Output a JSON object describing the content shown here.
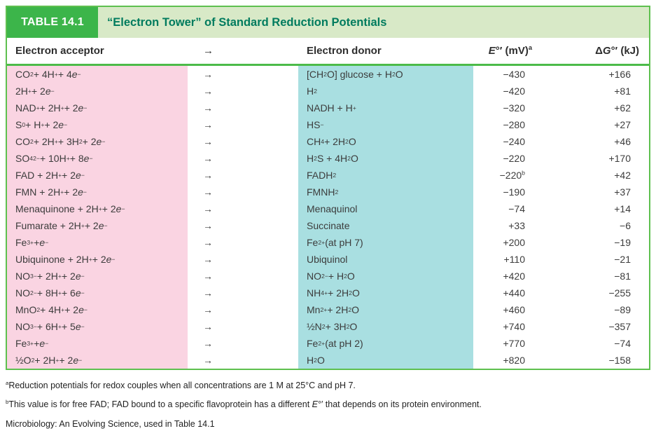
{
  "table": {
    "label": "TABLE 14.1",
    "title": "“Electron Tower” of Standard Reduction Potentials",
    "columns": {
      "acceptor": "Electron acceptor",
      "arrow": "→",
      "donor": "Electron donor",
      "emv_html": "<i>E</i>°′ (mV)<sup>a</sup>",
      "dg_html": "Δ<i>G</i>°′ (kJ)"
    },
    "arrow_glyph": "→",
    "rows": [
      {
        "acceptor_html": "CO<sub>2</sub> + 4H<sup>+</sup> + 4<i>e</i><sup>−</sup>",
        "donor_html": "[CH<sub>2</sub>O] glucose + H<sub>2</sub>O",
        "emv_html": "−430",
        "dg_html": "+166"
      },
      {
        "acceptor_html": "2H<sup>+</sup> + 2<i>e</i><sup>−</sup>",
        "donor_html": "H<sub>2</sub>",
        "emv_html": "−420",
        "dg_html": "+81"
      },
      {
        "acceptor_html": "NAD<sup>+</sup> + 2H<sup>+</sup> + 2<i>e</i><sup>−</sup>",
        "donor_html": "NADH + H<sup>+</sup>",
        "emv_html": "−320",
        "dg_html": "+62"
      },
      {
        "acceptor_html": "S<sup>0</sup> + H<sup>+</sup> + 2<i>e</i><sup>−</sup>",
        "donor_html": "HS<sup>−</sup>",
        "emv_html": "−280",
        "dg_html": "+27"
      },
      {
        "acceptor_html": "CO<sub>2</sub> + 2H<sup>+</sup> + 3H<sub>2</sub> + 2<i>e</i><sup>−</sup>",
        "donor_html": "CH<sub>4</sub> + 2H<sub>2</sub>O",
        "emv_html": "−240",
        "dg_html": "+46"
      },
      {
        "acceptor_html": "SO<sub>4</sub><sup>2−</sup> + 10H<sup>+</sup> + 8<i>e</i><sup>−</sup>",
        "donor_html": "H<sub>2</sub>S + 4H<sub>2</sub>O",
        "emv_html": "−220",
        "dg_html": "+170"
      },
      {
        "acceptor_html": "FAD + 2H<sup>+</sup> + 2<i>e</i><sup>−</sup>",
        "donor_html": "FADH<sub>2</sub>",
        "emv_html": "−220<sup>b</sup>",
        "dg_html": "+42"
      },
      {
        "acceptor_html": "FMN + 2H<sup>+</sup> + 2<i>e</i><sup>−</sup>",
        "donor_html": "FMNH<sub>2</sub>",
        "emv_html": "−190",
        "dg_html": "+37"
      },
      {
        "acceptor_html": "Menaquinone + 2H<sup>+</sup> + 2<i>e</i><sup>−</sup>",
        "donor_html": "Menaquinol",
        "emv_html": "−74",
        "dg_html": "+14"
      },
      {
        "acceptor_html": "Fumarate + 2H<sup>+</sup> + 2<i>e</i><sup>−</sup>",
        "donor_html": "Succinate",
        "emv_html": "+33",
        "dg_html": "−6"
      },
      {
        "acceptor_html": "Fe<sup>3+</sup> + <i>e</i><sup>−</sup>",
        "donor_html": "Fe<sup>2+</sup> (at pH 7)",
        "emv_html": "+200",
        "dg_html": "−19"
      },
      {
        "acceptor_html": "Ubiquinone + 2H<sup>+</sup> + 2<i>e</i><sup>−</sup>",
        "donor_html": "Ubiquinol",
        "emv_html": "+110",
        "dg_html": "−21"
      },
      {
        "acceptor_html": "NO<sub>3</sub><sup>−</sup> + 2H<sup>+</sup> + 2<i>e</i><sup>−</sup>",
        "donor_html": "NO<sub>2</sub><sup>−</sup> + H<sub>2</sub>O",
        "emv_html": "+420",
        "dg_html": "−81"
      },
      {
        "acceptor_html": "NO<sub>2</sub><sup>−</sup> + 8H<sup>+</sup> + 6<i>e</i><sup>−</sup>",
        "donor_html": "NH<sub>4</sub><sup>+</sup> + 2H<sub>2</sub>O",
        "emv_html": "+440",
        "dg_html": "−255"
      },
      {
        "acceptor_html": "MnO<sub>2</sub> + 4H<sup>+</sup> + 2<i>e</i><sup>−</sup>",
        "donor_html": "Mn<sup>2+</sup> + 2H<sub>2</sub>O",
        "emv_html": "+460",
        "dg_html": "−89"
      },
      {
        "acceptor_html": "NO<sub>3</sub><sup>−</sup> + 6H<sup>+</sup> + 5<i>e</i><sup>−</sup>",
        "donor_html": "½N<sub>2</sub> + 3H<sub>2</sub>O",
        "emv_html": "+740",
        "dg_html": "−357"
      },
      {
        "acceptor_html": "Fe<sup>3+</sup> + <i>e</i><sup>−</sup>",
        "donor_html": "Fe<sup>2+</sup> (at pH 2)",
        "emv_html": "+770",
        "dg_html": "−74"
      },
      {
        "acceptor_html": "½O<sub>2</sub> + 2H<sup>+</sup> + 2<i>e</i><sup>−</sup>",
        "donor_html": "H<sub>2</sub>O",
        "emv_html": "+820",
        "dg_html": "−158"
      }
    ]
  },
  "footnotes": {
    "a_html": "<sup>a</sup>Reduction potentials for redox couples when all concentrations are 1 M at 25°C and pH 7.",
    "b_html": "<sup>b</sup>This value is for free FAD; FAD bound to a specific flavoprotein has a different <i>E</i>°′ that depends on its protein environment.",
    "partial_html": "Microbiology: An Evolving Science, used in Table 14.1"
  },
  "colors": {
    "label_green": "#3cb54a",
    "band_green": "#d8e9c7",
    "title_text_green": "#007b5e",
    "border_green": "#5ec04f",
    "rule_green": "#4cbb49",
    "acceptor_pink": "#fad4e2",
    "donor_teal": "#a9dfe1",
    "body_text": "#3c3c3c"
  }
}
